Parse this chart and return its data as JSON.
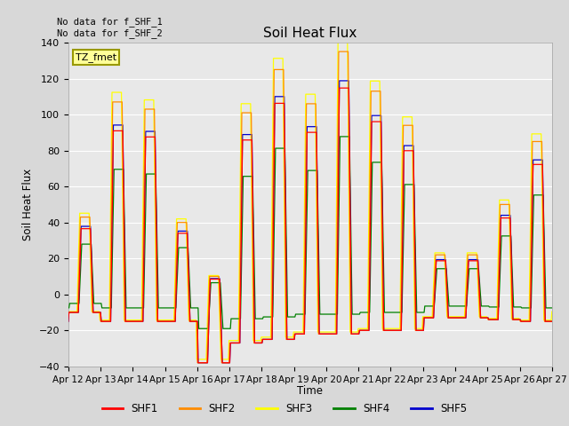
{
  "title": "Soil Heat Flux",
  "ylabel": "Soil Heat Flux",
  "xlabel": "Time",
  "ylim": [
    -40,
    140
  ],
  "yticks": [
    -40,
    -20,
    0,
    20,
    40,
    60,
    80,
    100,
    120,
    140
  ],
  "x_labels": [
    "Apr 12",
    "Apr 13",
    "Apr 14",
    "Apr 15",
    "Apr 16",
    "Apr 17",
    "Apr 18",
    "Apr 19",
    "Apr 20",
    "Apr 21",
    "Apr 22",
    "Apr 23",
    "Apr 24",
    "Apr 25",
    "Apr 26",
    "Apr 27"
  ],
  "colors": {
    "SHF1": "#ff0000",
    "SHF2": "#ff8c00",
    "SHF3": "#ffff00",
    "SHF4": "#008000",
    "SHF5": "#0000cd"
  },
  "annotation_text": "No data for f_SHF_1\nNo data for f_SHF_2",
  "legend_box_text": "TZ_fmet",
  "legend_box_color": "#ffff99",
  "legend_box_edge": "#999900",
  "plot_bg": "#e8e8e8",
  "fig_bg": "#d8d8d8",
  "grid_color": "#ffffff"
}
